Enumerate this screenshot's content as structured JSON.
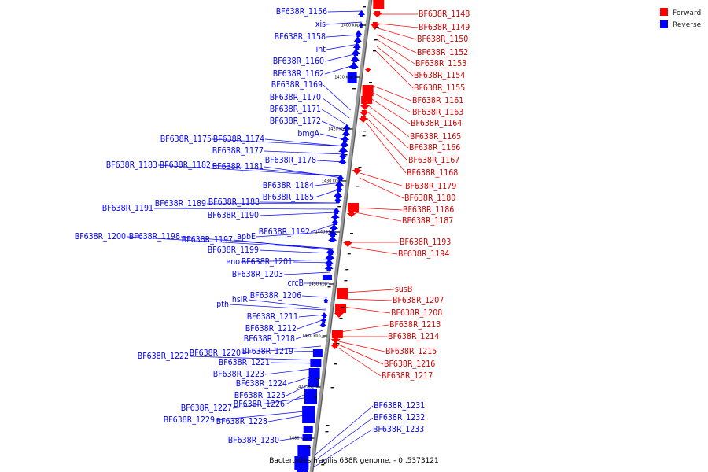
{
  "title": "Bacteroides fragilis 638R genome. - 0..5373121",
  "legend": [
    {
      "label": "Forward",
      "color": "#ff0000"
    },
    {
      "label": "Reverse",
      "color": "#0000ff"
    }
  ],
  "ticks": [
    "1400 kbp",
    "1410 kbp",
    "1420 kbp",
    "1430 kbp",
    "1440 kbp",
    "1450 kbp",
    "1460 kbp",
    "1470 kbp",
    "1480 kbp"
  ],
  "reverse_genes": [
    "BF638R_1156",
    "xis",
    "BF638R_1158",
    "int",
    "BF638R_1160",
    "BF638R_1162",
    "BF638R_1169",
    "BF638R_1170",
    "BF638R_1171",
    "BF638R_1172",
    "bmgA",
    "BF638R_1175",
    "BF638R_1174",
    "BF638R_1177",
    "BF638R_1178",
    "BF638R_1183",
    "BF638R_1182",
    "BF638R_1181",
    "BF638R_1184",
    "BF638R_1185",
    "BF638R_1189",
    "BF638R_1188",
    "BF638R_1191",
    "BF638R_1190",
    "BF638R_1192",
    "apbE",
    "BF638R_1200",
    "BF638R_1198",
    "BF638R_1197",
    "BF638R_1199",
    "eno",
    "BF638R_1201",
    "BF638R_1203",
    "crcB",
    "BF638R_1206",
    "hslR",
    "pth",
    "BF638R_1211",
    "BF638R_1212",
    "BF638R_1218",
    "BF638R_1220",
    "BF638R_1219",
    "BF638R_1222",
    "BF638R_1221",
    "BF638R_1223",
    "BF638R_1224",
    "BF638R_1225",
    "BF638R_1226",
    "BF638R_1227",
    "BF638R_1229",
    "BF638R_1228",
    "BF638R_1230",
    "BF638R_1231",
    "BF638R_1232",
    "BF638R_1233"
  ],
  "forward_genes": [
    "BF638R_1148",
    "BF638R_1149",
    "BF638R_1150",
    "BF638R_1152",
    "BF638R_1153",
    "BF638R_1154",
    "BF638R_1155",
    "BF638R_1161",
    "BF638R_1163",
    "BF638R_1164",
    "BF638R_1165",
    "BF638R_1166",
    "BF638R_1167",
    "BF638R_1168",
    "BF638R_1179",
    "BF638R_1180",
    "BF638R_1186",
    "BF638R_1187",
    "BF638R_1193",
    "BF638R_1194",
    "susB",
    "BF638R_1207",
    "BF638R_1208",
    "BF638R_1213",
    "BF638R_1214",
    "BF638R_1215",
    "BF638R_1216",
    "BF638R_1217"
  ]
}
